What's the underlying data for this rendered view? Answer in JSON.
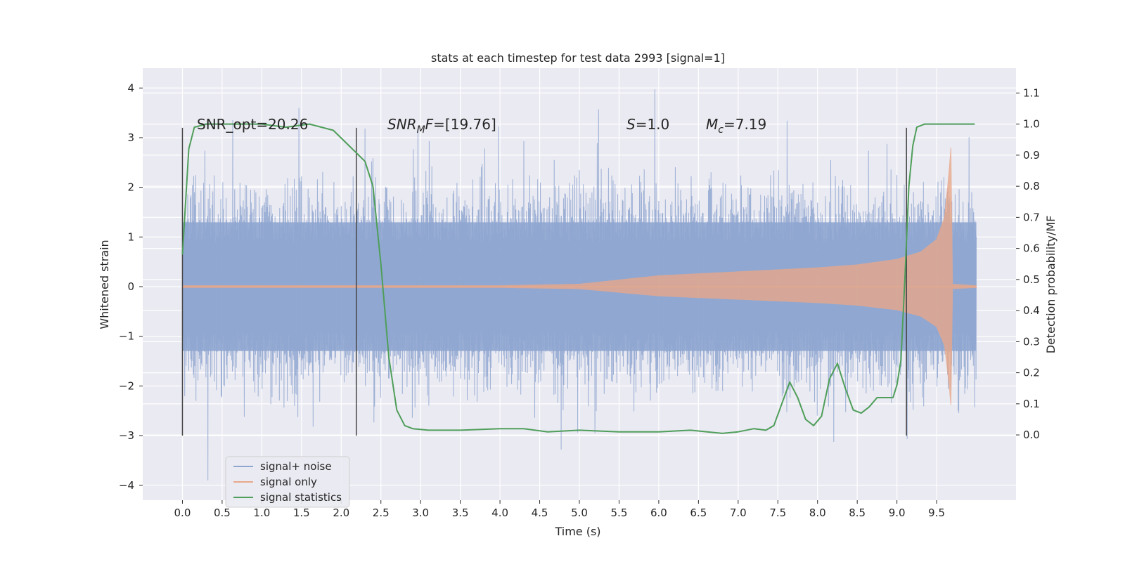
{
  "chart_data": {
    "type": "line",
    "title": "stats at each timestep for test data 2993 [signal=1]",
    "xlabel": "Time (s)",
    "ylabel_left": "Whitened strain",
    "ylabel_right": "Detection probability/MF",
    "xlim": [
      -0.5,
      10.5
    ],
    "ylim_left": [
      -4.3,
      4.4
    ],
    "ylim_right": [
      -0.21,
      1.18
    ],
    "xticks": [
      "0.0",
      "0.5",
      "1.0",
      "1.5",
      "2.0",
      "2.5",
      "3.0",
      "3.5",
      "4.0",
      "4.5",
      "5.0",
      "5.5",
      "6.0",
      "6.5",
      "7.0",
      "7.5",
      "8.0",
      "8.5",
      "9.0",
      "9.5"
    ],
    "xtick_values": [
      0.0,
      0.5,
      1.0,
      1.5,
      2.0,
      2.5,
      3.0,
      3.5,
      4.0,
      4.5,
      5.0,
      5.5,
      6.0,
      6.5,
      7.0,
      7.5,
      8.0,
      8.5,
      9.0,
      9.5
    ],
    "yticks_left": [
      "4",
      "3",
      "2",
      "1",
      "0",
      "−1",
      "−2",
      "−3",
      "−4"
    ],
    "ytick_values_left": [
      4,
      3,
      2,
      1,
      0,
      -1,
      -2,
      -3,
      -4
    ],
    "yticks_right": [
      "1.1",
      "1.0",
      "0.9",
      "0.8",
      "0.7",
      "0.6",
      "0.5",
      "0.4",
      "0.3",
      "0.2",
      "0.1",
      "0.0"
    ],
    "ytick_values_right": [
      1.1,
      1.0,
      0.9,
      0.8,
      0.7,
      0.6,
      0.5,
      0.4,
      0.3,
      0.2,
      0.1,
      0.0
    ],
    "grid": true,
    "legend_position": "lower-left",
    "series": [
      {
        "name": "signal+ noise",
        "axis": "left",
        "color": "#8fa6d0",
        "x_range": [
          0.0,
          10.0
        ],
        "typical_envelope": [
          -1.8,
          1.8
        ],
        "extreme_range": [
          -3.9,
          4.05
        ]
      },
      {
        "name": "signal only",
        "axis": "left",
        "color": "#e8a88a",
        "x": [
          0.0,
          4.0,
          5.0,
          6.0,
          7.0,
          8.0,
          8.5,
          9.0,
          9.3,
          9.5,
          9.6,
          9.65,
          9.68,
          9.7,
          10.0
        ],
        "amplitude": [
          0.02,
          0.02,
          0.05,
          0.22,
          0.3,
          0.38,
          0.44,
          0.55,
          0.7,
          0.95,
          1.4,
          2.2,
          2.8,
          0.05,
          0.02
        ]
      },
      {
        "name": "signal statistics",
        "axis": "right",
        "color": "#4f9e5a",
        "x": [
          0.0,
          0.08,
          0.15,
          0.3,
          0.6,
          1.0,
          1.3,
          1.6,
          1.9,
          2.1,
          2.3,
          2.4,
          2.5,
          2.6,
          2.7,
          2.8,
          2.9,
          3.1,
          3.5,
          4.0,
          4.3,
          4.6,
          5.0,
          5.5,
          6.0,
          6.4,
          6.8,
          7.0,
          7.2,
          7.35,
          7.45,
          7.55,
          7.65,
          7.75,
          7.85,
          7.95,
          8.05,
          8.15,
          8.25,
          8.35,
          8.45,
          8.55,
          8.65,
          8.75,
          8.85,
          8.95,
          9.0,
          9.05,
          9.1,
          9.15,
          9.2,
          9.25,
          9.35,
          9.6,
          9.98
        ],
        "values": [
          0.58,
          0.92,
          0.99,
          1.0,
          1.0,
          1.0,
          0.99,
          1.0,
          0.98,
          0.93,
          0.88,
          0.8,
          0.55,
          0.25,
          0.08,
          0.03,
          0.02,
          0.015,
          0.015,
          0.02,
          0.02,
          0.01,
          0.015,
          0.01,
          0.01,
          0.015,
          0.005,
          0.01,
          0.02,
          0.015,
          0.03,
          0.1,
          0.17,
          0.12,
          0.05,
          0.03,
          0.06,
          0.18,
          0.23,
          0.15,
          0.08,
          0.07,
          0.09,
          0.12,
          0.12,
          0.12,
          0.16,
          0.24,
          0.5,
          0.8,
          0.93,
          0.99,
          1.0,
          1.0,
          1.0
        ]
      }
    ],
    "vertical_lines_x": [
      0.0,
      2.19,
      9.12
    ],
    "annotations": {
      "snr_opt": "SNR_opt=20.26",
      "snr_mf_italic": "SNR",
      "snr_mf_sub": "M",
      "snr_mf_rest_italic": "F",
      "snr_mf_value": "=[19.76]",
      "s_italic": "S",
      "s_value": "=1.0",
      "mc_italic": "M",
      "mc_sub": "c",
      "mc_value": "=7.19"
    }
  }
}
